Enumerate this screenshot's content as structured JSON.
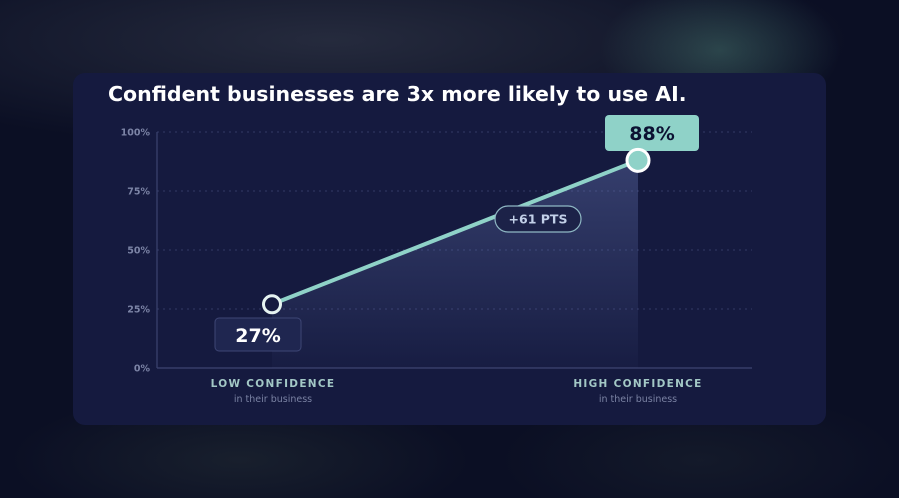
{
  "title": "Confident businesses are 3x more likely to use AI.",
  "colors": {
    "background": "#0b0f24",
    "card": "#151a3f",
    "accent": "#8fd2c8",
    "axis": "#3d4470",
    "tick_text": "#7c84a6"
  },
  "chart_data": {
    "type": "line",
    "title": "Confident businesses are 3x more likely to use AI.",
    "categories": [
      "LOW CONFIDENCE",
      "HIGH CONFIDENCE"
    ],
    "category_subtitles": [
      "in their business",
      "in their business"
    ],
    "values": [
      27,
      88
    ],
    "value_labels": [
      "27%",
      "88%"
    ],
    "yticks": [
      "0%",
      "25%",
      "50%",
      "75%",
      "100%"
    ],
    "ylim": [
      0,
      100
    ],
    "grid": true,
    "annotation": "+61 PTS"
  }
}
